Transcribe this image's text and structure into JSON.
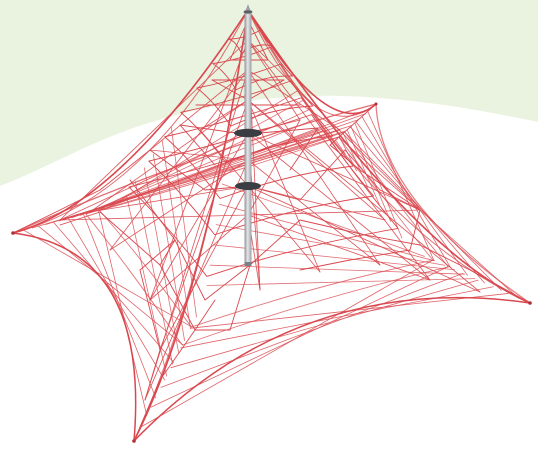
{
  "image": {
    "subject": "rope-climbing-net-pyramid",
    "colors": {
      "background": "#ffffff",
      "ground_band": "#eaf3e0",
      "rope": "#d9484f",
      "rope_light": "#e87a80",
      "mast": "#b9bcc2",
      "mast_shade": "#8d9096",
      "mast_highlight": "#e6e7ea",
      "clamp": "#3a3d42"
    }
  }
}
